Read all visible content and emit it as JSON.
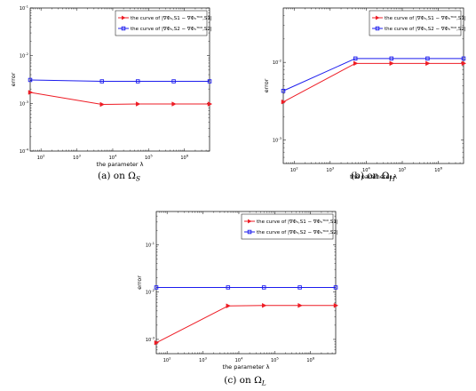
{
  "chart_data": [
    {
      "type": "line",
      "caption": "(a) on ΩS",
      "xlabel": "the parameter λ",
      "ylabel": "error",
      "xscale": "log",
      "yscale": "log",
      "xlim": [
        50,
        5000000
      ],
      "ylim": [
        0.0001,
        0.1
      ],
      "x_ticks": [
        100,
        1000,
        10000,
        100000,
        1000000
      ],
      "x_tick_labels": [
        "10^2",
        "10^3",
        "10^4",
        "10^5",
        "10^6"
      ],
      "y_ticks": [
        0.0001,
        0.001,
        0.01,
        0.1
      ],
      "y_tick_labels": [
        "10^-4",
        "10^-3",
        "10^-2",
        "10^-1"
      ],
      "legend_placement": "top-right",
      "series": [
        {
          "name": "the curve of |∇Φₙ,S1 − ∇Φₙᵀᴷᴰ,S1|",
          "color": "#ee1c25",
          "marker": "triangle-right",
          "x": [
            50,
            5000,
            50000,
            500000,
            5000000
          ],
          "y": [
            0.0017,
            0.00095,
            0.00097,
            0.00097,
            0.00097
          ]
        },
        {
          "name": "the curve of |∇Φₙ,S2 − ∇Φₙᵀᴷᴰ,S2|",
          "color": "#1c1cee",
          "marker": "square",
          "x": [
            50,
            5000,
            50000,
            500000,
            5000000
          ],
          "y": [
            0.0031,
            0.0029,
            0.0029,
            0.0029,
            0.0029
          ]
        }
      ]
    },
    {
      "type": "line",
      "caption": "(b) on ΩH",
      "xlabel": "the parameter λ",
      "ylabel": "error",
      "xscale": "log",
      "yscale": "log",
      "xlim": [
        50,
        5000000
      ],
      "ylim": [
        0.0005,
        0.05
      ],
      "x_ticks": [
        100,
        1000,
        10000,
        100000,
        1000000
      ],
      "x_tick_labels": [
        "10^2",
        "10^3",
        "10^4",
        "10^5",
        "10^6"
      ],
      "y_ticks": [
        0.001,
        0.01
      ],
      "y_tick_labels": [
        "10^-3",
        "10^-2"
      ],
      "legend_placement": "top-right",
      "series": [
        {
          "name": "the curve of |∇Φₙ,S1 − ∇Φₙᵀᴷᴰ,S1|",
          "color": "#ee1c25",
          "marker": "triangle-right",
          "x": [
            50,
            5000,
            50000,
            500000,
            5000000
          ],
          "y": [
            0.0031,
            0.0097,
            0.0097,
            0.0097,
            0.0097
          ]
        },
        {
          "name": "the curve of |∇Φₙ,S2 − ∇Φₙᵀᴷᴰ,S2|",
          "color": "#1c1cee",
          "marker": "square",
          "x": [
            50,
            5000,
            50000,
            500000,
            5000000
          ],
          "y": [
            0.0043,
            0.0112,
            0.0112,
            0.0112,
            0.0112
          ]
        }
      ]
    },
    {
      "type": "line",
      "caption": "(c) on ΩL",
      "xlabel": "the parameter λ",
      "ylabel": "error",
      "xscale": "log",
      "yscale": "log",
      "xlim": [
        50,
        5000000
      ],
      "ylim": [
        0.0005,
        0.5
      ],
      "x_ticks": [
        100,
        1000,
        10000,
        100000,
        1000000
      ],
      "x_tick_labels": [
        "10^2",
        "10^3",
        "10^4",
        "10^5",
        "10^6"
      ],
      "y_ticks": [
        0.001,
        0.01,
        0.1
      ],
      "y_tick_labels": [
        "10^-3",
        "10^-2",
        "10^-1"
      ],
      "legend_placement": "top-right",
      "series": [
        {
          "name": "the curve of |∇Φₙ,S1 − ∇Φₙᵀᴷᴰ,S1|",
          "color": "#ee1c25",
          "marker": "triangle-right",
          "x": [
            50,
            5000,
            50000,
            500000,
            5000000
          ],
          "y": [
            0.00085,
            0.0051,
            0.0052,
            0.0052,
            0.0052
          ]
        },
        {
          "name": "the curve of |∇Φₙ,S2 − ∇Φₙᵀᴷᴰ,S2|",
          "color": "#1c1cee",
          "marker": "square",
          "x": [
            50,
            5000,
            50000,
            500000,
            5000000
          ],
          "y": [
            0.0125,
            0.0125,
            0.0125,
            0.0125,
            0.0125
          ]
        }
      ]
    }
  ]
}
